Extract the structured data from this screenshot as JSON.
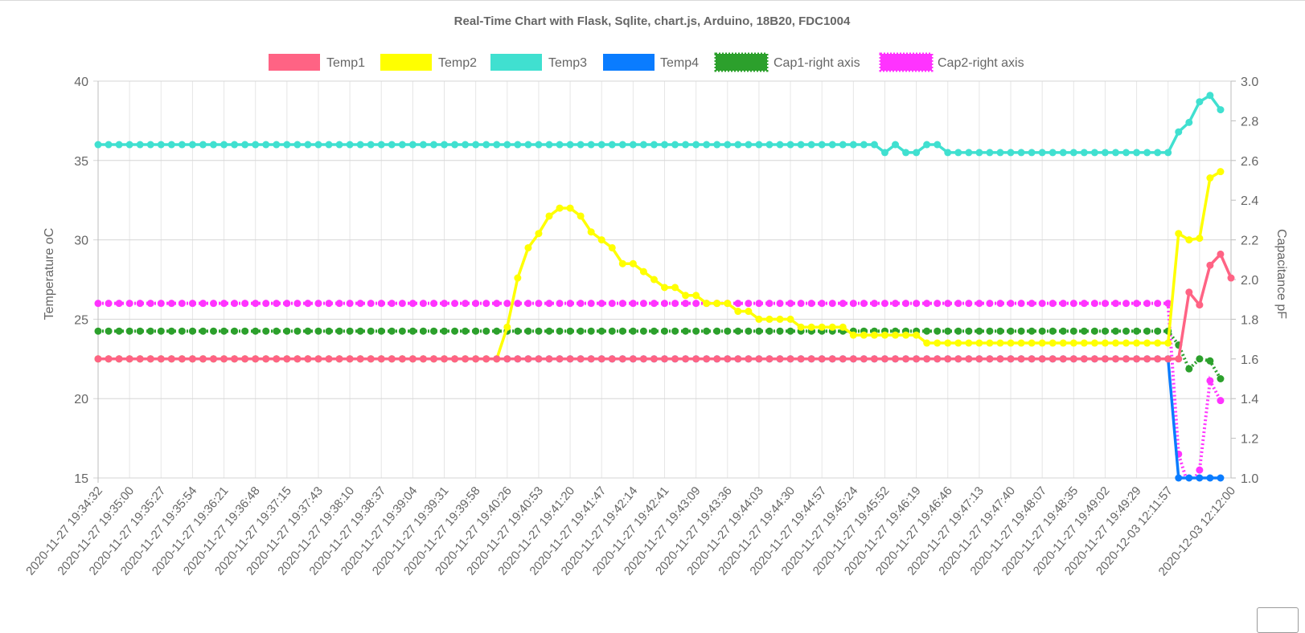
{
  "chart_data": {
    "type": "line",
    "title": "Real-Time Chart with Flask, Sqlite, chart.js, Arduino, 18B20, FDC1004",
    "y_left": {
      "label": "Temperature oC",
      "min": 15,
      "max": 40,
      "ticks": [
        15,
        20,
        25,
        30,
        35,
        40
      ]
    },
    "y_right": {
      "label": "Capacitance pF",
      "min": 1.0,
      "max": 3.0,
      "ticks": [
        "1.0",
        "1.2",
        "1.4",
        "1.6",
        "1.8",
        "2.0",
        "2.2",
        "2.4",
        "2.6",
        "2.8",
        "3.0"
      ]
    },
    "grid": true,
    "legend_position": "top",
    "x_tick_labels": [
      "2020-11-27 19:34:32",
      "2020-11-27 19:35:00",
      "2020-11-27 19:35:27",
      "2020-11-27 19:35:54",
      "2020-11-27 19:36:21",
      "2020-11-27 19:36:48",
      "2020-11-27 19:37:15",
      "2020-11-27 19:37:43",
      "2020-11-27 19:38:10",
      "2020-11-27 19:38:37",
      "2020-11-27 19:39:04",
      "2020-11-27 19:39:31",
      "2020-11-27 19:39:58",
      "2020-11-27 19:40:26",
      "2020-11-27 19:40:53",
      "2020-11-27 19:41:20",
      "2020-11-27 19:41:47",
      "2020-11-27 19:42:14",
      "2020-11-27 19:42:41",
      "2020-11-27 19:43:09",
      "2020-11-27 19:43:36",
      "2020-11-27 19:44:03",
      "2020-11-27 19:44:30",
      "2020-11-27 19:44:57",
      "2020-11-27 19:45:24",
      "2020-11-27 19:45:52",
      "2020-11-27 19:46:19",
      "2020-11-27 19:46:46",
      "2020-11-27 19:47:13",
      "2020-11-27 19:47:40",
      "2020-11-27 19:48:07",
      "2020-11-27 19:48:35",
      "2020-11-27 19:49:02",
      "2020-11-27 19:49:29",
      "2020-12-03 12:11:57",
      "2020-12-03 12:12:00"
    ],
    "series": [
      {
        "name": "Temp1",
        "axis": "left",
        "color": "#ff6384",
        "style": "solid",
        "runs": [
          [
            0,
            102,
            22.5
          ],
          [
            103,
            22.5
          ],
          [
            104,
            26.7
          ],
          [
            105,
            25.9
          ],
          [
            106,
            28.4
          ],
          [
            107,
            29.1
          ],
          [
            108,
            27.6
          ]
        ]
      },
      {
        "name": "Temp2",
        "axis": "left",
        "color": "#ffff00",
        "style": "solid",
        "runs": [
          [
            0,
            38,
            22.5
          ],
          [
            39,
            24.5
          ],
          [
            40,
            27.6
          ],
          [
            41,
            29.5
          ],
          [
            42,
            30.4
          ],
          [
            43,
            31.5
          ],
          [
            44,
            32.0
          ],
          [
            45,
            32.0
          ],
          [
            46,
            31.5
          ],
          [
            47,
            30.5
          ],
          [
            48,
            30.0
          ],
          [
            49,
            29.5
          ],
          [
            50,
            28.5
          ],
          [
            51,
            28.5
          ],
          [
            52,
            28.0
          ],
          [
            53,
            27.5
          ],
          [
            54,
            27.0
          ],
          [
            55,
            27.0
          ],
          [
            56,
            26.5
          ],
          [
            57,
            26.5
          ],
          [
            58,
            26.0
          ],
          [
            59,
            26.0
          ],
          [
            60,
            26.0
          ],
          [
            61,
            25.5
          ],
          [
            62,
            25.5
          ],
          [
            63,
            25.0
          ],
          [
            64,
            25.0
          ],
          [
            65,
            25.0
          ],
          [
            66,
            25.0
          ],
          [
            67,
            24.5
          ],
          [
            68,
            24.5
          ],
          [
            69,
            24.5
          ],
          [
            70,
            24.5
          ],
          [
            71,
            24.5
          ],
          [
            72,
            24.0
          ],
          [
            73,
            24.0
          ],
          [
            74,
            24.0
          ],
          [
            75,
            24.0
          ],
          [
            76,
            24.0
          ],
          [
            77,
            24.0
          ],
          [
            78,
            24.0
          ],
          [
            79,
            23.5
          ],
          [
            80,
            102,
            23.5
          ],
          [
            103,
            30.4
          ],
          [
            104,
            30.0
          ],
          [
            105,
            30.1
          ],
          [
            106,
            33.9
          ],
          [
            107,
            34.3
          ]
        ]
      },
      {
        "name": "Temp3",
        "axis": "left",
        "color": "#40e0d0",
        "style": "solid",
        "runs": [
          [
            0,
            74,
            36.0
          ],
          [
            75,
            35.5
          ],
          [
            76,
            36.0
          ],
          [
            77,
            35.5
          ],
          [
            78,
            35.5
          ],
          [
            79,
            36.0
          ],
          [
            80,
            36.0
          ],
          [
            81,
            102,
            35.5
          ],
          [
            103,
            36.8
          ],
          [
            104,
            37.4
          ],
          [
            105,
            38.7
          ],
          [
            106,
            39.1
          ],
          [
            107,
            38.2
          ]
        ]
      },
      {
        "name": "Temp4",
        "axis": "left",
        "color": "#0a7cff",
        "style": "solid",
        "runs": [
          [
            0,
            102,
            22.5
          ],
          [
            103,
            15.0
          ],
          [
            104,
            15.0
          ],
          [
            105,
            15.0
          ],
          [
            106,
            15.0
          ],
          [
            107,
            15.0
          ]
        ]
      },
      {
        "name": "Cap1-right axis",
        "axis": "right",
        "color": "#2ca02c",
        "style": "dotted",
        "runs": [
          [
            0,
            102,
            1.74
          ],
          [
            103,
            1.67
          ],
          [
            104,
            1.55
          ],
          [
            105,
            1.6
          ],
          [
            106,
            1.59
          ],
          [
            107,
            1.5
          ]
        ]
      },
      {
        "name": "Cap2-right axis",
        "axis": "right",
        "color": "#ff33ff",
        "style": "dotted",
        "runs": [
          [
            0,
            102,
            1.88
          ],
          [
            103,
            1.12
          ],
          [
            104,
            0.95
          ],
          [
            105,
            1.04
          ],
          [
            106,
            1.49
          ],
          [
            107,
            1.39
          ]
        ]
      }
    ]
  }
}
